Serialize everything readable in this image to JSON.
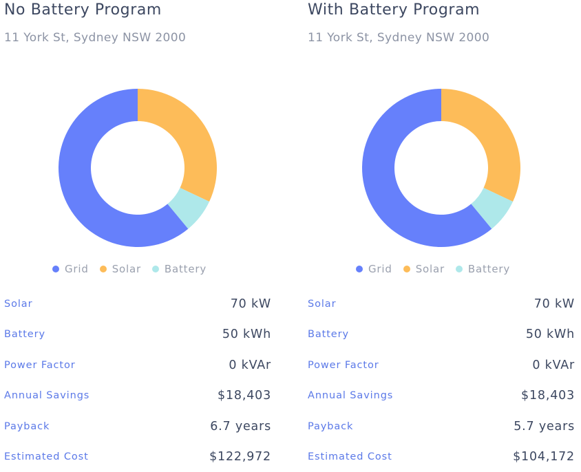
{
  "colors": {
    "grid": "#6680fb",
    "solar": "#fdbc59",
    "battery": "#aee8ea"
  },
  "panels": [
    {
      "title": "No Battery Program",
      "subtitle": "11 York St, Sydney NSW 2000",
      "stats": [
        {
          "label": "Solar",
          "value": "70 kW"
        },
        {
          "label": "Battery",
          "value": "50 kWh"
        },
        {
          "label": "Power Factor",
          "value": "0 kVAr"
        },
        {
          "label": "Annual Savings",
          "value": "$18,403"
        },
        {
          "label": "Payback",
          "value": "6.7 years"
        },
        {
          "label": "Estimated Cost",
          "value": "$122,972"
        }
      ]
    },
    {
      "title": "With Battery Program",
      "subtitle": "11 York St, Sydney NSW 2000",
      "stats": [
        {
          "label": "Solar",
          "value": "70 kW"
        },
        {
          "label": "Battery",
          "value": "50 kWh"
        },
        {
          "label": "Power Factor",
          "value": "0 kVAr"
        },
        {
          "label": "Annual Savings",
          "value": "$18,403"
        },
        {
          "label": "Payback",
          "value": "5.7 years"
        },
        {
          "label": "Estimated Cost",
          "value": "$104,172"
        }
      ]
    }
  ],
  "chart_data": [
    {
      "type": "pie",
      "categories": [
        "Solar",
        "Battery",
        "Grid"
      ],
      "values": [
        32,
        7,
        61
      ],
      "legend": [
        "Grid",
        "Solar",
        "Battery"
      ],
      "legend_position": "bottom"
    },
    {
      "type": "pie",
      "categories": [
        "Solar",
        "Battery",
        "Grid"
      ],
      "values": [
        32,
        7,
        61
      ],
      "legend": [
        "Grid",
        "Solar",
        "Battery"
      ],
      "legend_position": "bottom"
    }
  ]
}
